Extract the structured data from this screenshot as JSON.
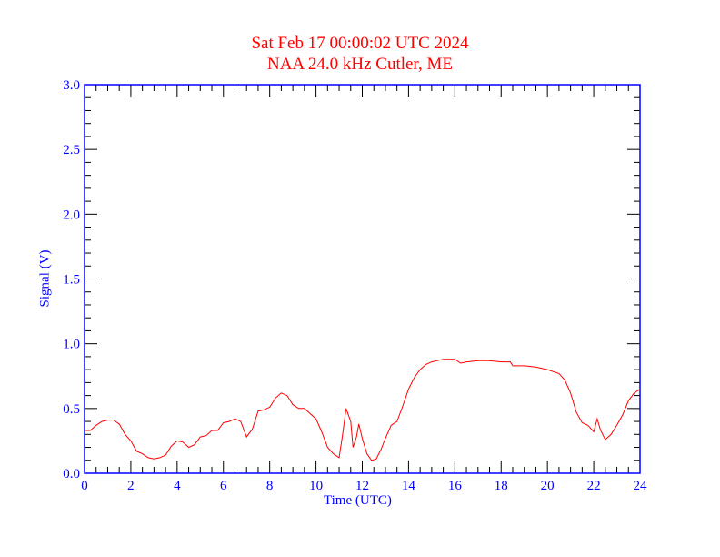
{
  "chart_data": {
    "type": "line",
    "title": "Sat Feb 17 00:00:02 UTC 2024",
    "subtitle": "NAA 24.0 kHz Cutler, ME",
    "xlabel": "Time (UTC)",
    "ylabel": "Signal (V)",
    "xlim": [
      0,
      24
    ],
    "ylim": [
      0,
      3.0
    ],
    "xticks": [
      "0",
      "2",
      "4",
      "6",
      "8",
      "10",
      "12",
      "14",
      "16",
      "18",
      "20",
      "22",
      "24"
    ],
    "yticks": [
      "0.0",
      "0.5",
      "1.0",
      "1.5",
      "2.0",
      "2.5",
      "3.0"
    ],
    "grid": false,
    "series": [
      {
        "name": "NAA",
        "color": "#ff0000",
        "x": [
          0,
          0.25,
          0.5,
          0.75,
          1.0,
          1.25,
          1.5,
          1.75,
          2.0,
          2.25,
          2.5,
          2.75,
          3.0,
          3.25,
          3.5,
          3.75,
          4.0,
          4.25,
          4.5,
          4.75,
          5.0,
          5.25,
          5.5,
          5.75,
          6.0,
          6.25,
          6.5,
          6.75,
          7.0,
          7.25,
          7.5,
          7.75,
          8.0,
          8.25,
          8.5,
          8.75,
          9.0,
          9.25,
          9.5,
          9.75,
          10.0,
          10.25,
          10.5,
          10.75,
          11.0,
          11.15,
          11.3,
          11.5,
          11.6,
          11.75,
          11.85,
          12.0,
          12.2,
          12.4,
          12.6,
          12.8,
          13.0,
          13.25,
          13.5,
          13.75,
          14.0,
          14.25,
          14.5,
          14.75,
          15.0,
          15.5,
          16.0,
          16.25,
          16.5,
          17.0,
          17.5,
          18.0,
          18.4,
          18.5,
          19.0,
          19.5,
          20.0,
          20.5,
          20.75,
          21.0,
          21.25,
          21.5,
          21.75,
          22.0,
          22.15,
          22.3,
          22.5,
          22.75,
          23.0,
          23.25,
          23.5,
          23.75,
          24.0
        ],
        "y": [
          0.33,
          0.33,
          0.37,
          0.4,
          0.41,
          0.41,
          0.38,
          0.3,
          0.25,
          0.17,
          0.15,
          0.12,
          0.11,
          0.12,
          0.14,
          0.21,
          0.25,
          0.24,
          0.2,
          0.22,
          0.28,
          0.29,
          0.33,
          0.33,
          0.39,
          0.4,
          0.42,
          0.4,
          0.28,
          0.34,
          0.48,
          0.49,
          0.51,
          0.58,
          0.62,
          0.6,
          0.53,
          0.5,
          0.5,
          0.46,
          0.42,
          0.32,
          0.2,
          0.15,
          0.12,
          0.3,
          0.5,
          0.4,
          0.2,
          0.28,
          0.38,
          0.27,
          0.15,
          0.1,
          0.11,
          0.18,
          0.27,
          0.37,
          0.4,
          0.52,
          0.65,
          0.74,
          0.8,
          0.84,
          0.86,
          0.88,
          0.88,
          0.85,
          0.86,
          0.87,
          0.87,
          0.86,
          0.86,
          0.83,
          0.83,
          0.82,
          0.8,
          0.77,
          0.72,
          0.62,
          0.47,
          0.39,
          0.37,
          0.32,
          0.42,
          0.33,
          0.26,
          0.3,
          0.37,
          0.45,
          0.56,
          0.62,
          0.65
        ]
      }
    ]
  }
}
